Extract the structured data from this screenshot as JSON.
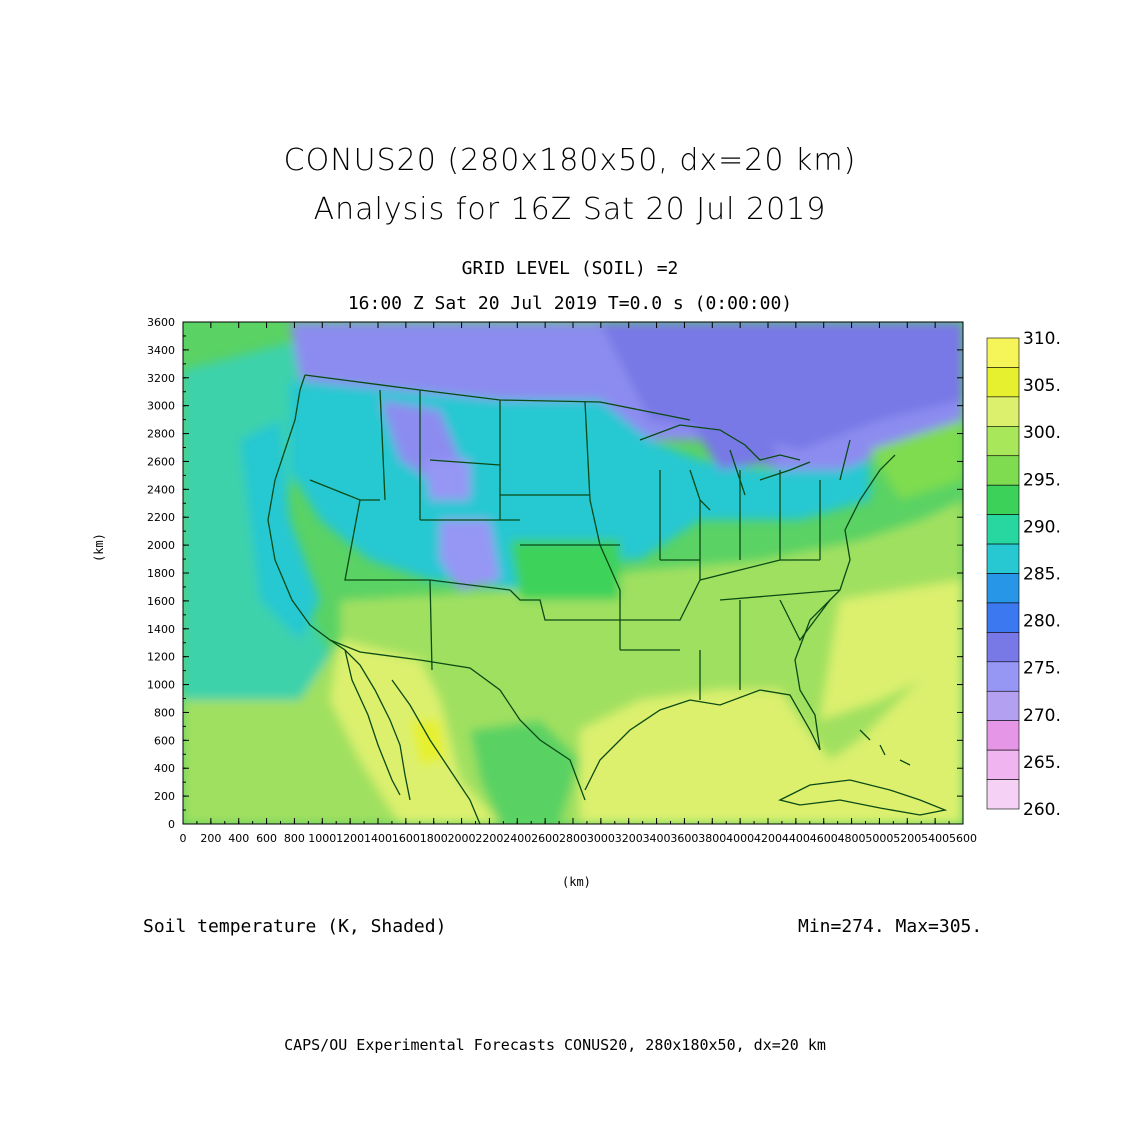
{
  "title": {
    "line1": "CONUS20 (280x180x50, dx=20 km)",
    "line2": "Analysis for 16Z Sat 20 Jul 2019"
  },
  "subtitle": {
    "level": "GRID LEVEL (SOIL) =2",
    "time": "16:00 Z Sat 20 Jul 2019    T=0.0 s (0:00:00)"
  },
  "field_label": "Soil temperature (K, Shaded)",
  "min_max": "Min=274. Max=305.",
  "credits": "CAPS/OU Experimental Forecasts  CONUS20, 280x180x50, dx=20 km",
  "axis": {
    "x_unit": "(km)",
    "y_unit": "(km)",
    "x_ticks": [
      0,
      200,
      400,
      600,
      800,
      1000,
      1200,
      1400,
      1600,
      1800,
      2000,
      2200,
      2400,
      2600,
      2800,
      3000,
      3200,
      3400,
      3600,
      3800,
      4000,
      4200,
      4400,
      4600,
      4800,
      5000,
      5200,
      5400,
      5600
    ],
    "y_ticks": [
      0,
      200,
      400,
      600,
      800,
      1000,
      1200,
      1400,
      1600,
      1800,
      2000,
      2200,
      2400,
      2600,
      2800,
      3000,
      3200,
      3400,
      3600
    ],
    "x_range": [
      0,
      5600
    ],
    "y_range": [
      0,
      3600
    ]
  },
  "colorbar": {
    "labels": [
      "310.",
      "305.",
      "300.",
      "295.",
      "290.",
      "285.",
      "280.",
      "275.",
      "270.",
      "265.",
      "260."
    ],
    "bins_top_to_bottom": [
      "#f5f55a",
      "#e6f02e",
      "#dcf06e",
      "#a8e65a",
      "#7fdc50",
      "#3cd25a",
      "#28d7a0",
      "#28c8d2",
      "#2896e6",
      "#3c78f0",
      "#7878e6",
      "#9696f5",
      "#b4a0f0",
      "#e696e6",
      "#f0b4f0",
      "#f5d2f5"
    ]
  },
  "map_colors": {
    "ocean_cool": "#3cd2aa",
    "ocean_mid": "#5ad264",
    "gulf_warm": "#dcf06e",
    "land_warm": "#a0e060",
    "land_hot": "#dcf06e",
    "land_cool": "#28c8d2",
    "land_cold": "#8c8cf0",
    "boundary": "#0a4a14"
  }
}
